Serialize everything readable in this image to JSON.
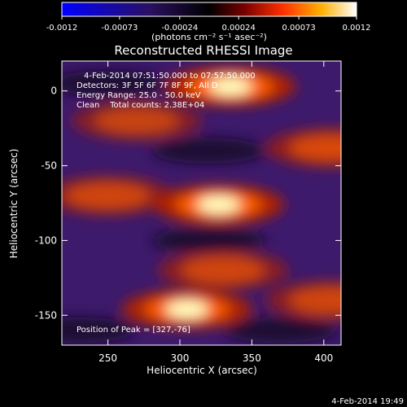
{
  "colorbar": {
    "ticks": [
      "-0.0012",
      "-0.00073",
      "-0.00024",
      "0.00024",
      "0.00073",
      "0.0012"
    ],
    "tick_values": [
      -0.0012,
      -0.00073,
      -0.00024,
      0.00024,
      0.00073,
      0.0012
    ],
    "min": -0.0012,
    "max": 0.0012,
    "unit_label": "(photons cm⁻² s⁻¹ asec⁻²)"
  },
  "title": "Reconstructed RHESSI Image",
  "info": {
    "time_range": "4-Feb-2014 07:51:50.000 to 07:57:50.000",
    "detectors": "Detectors: 3F 5F 6F 7F 8F 9F, All D",
    "energy": "Energy Range: 25.0 - 50.0 keV",
    "clean": "Clean    Total counts: 2.38E+04",
    "peak": "Position of Peak = [327,-76]"
  },
  "footer_date": "4-Feb-2014 19:49",
  "chart_data": {
    "type": "heatmap",
    "title": "Reconstructed RHESSI Image",
    "xlabel": "Heliocentric X (arcsec)",
    "ylabel": "Heliocentric Y (arcsec)",
    "xlim": [
      218,
      412
    ],
    "ylim": [
      -170,
      20
    ],
    "x_ticks": [
      250,
      300,
      350,
      400
    ],
    "y_ticks": [
      0,
      -50,
      -100,
      -150
    ],
    "x_tick_labels": [
      "250",
      "300",
      "350",
      "400"
    ],
    "y_tick_labels": [
      "0",
      "-50",
      "-100",
      "-150"
    ],
    "colormap": "blue-purple-red-yellow-white",
    "peak": [
      327,
      -76
    ],
    "bright_bands": [
      {
        "x": 335,
        "y": 3,
        "level": 1.0
      },
      {
        "x": 270,
        "y": -20,
        "level": 0.55
      },
      {
        "x": 405,
        "y": -38,
        "level": 0.65
      },
      {
        "x": 327,
        "y": -76,
        "level": 1.0
      },
      {
        "x": 250,
        "y": -70,
        "level": 0.6
      },
      {
        "x": 330,
        "y": -120,
        "level": 0.6
      },
      {
        "x": 405,
        "y": -140,
        "level": 0.6
      },
      {
        "x": 305,
        "y": -146,
        "level": 0.95
      }
    ],
    "dark_bands": [
      {
        "x": 320,
        "y": -40
      },
      {
        "x": 320,
        "y": -100
      },
      {
        "x": 250,
        "y": 5
      },
      {
        "x": 370,
        "y": -160
      },
      {
        "x": 230,
        "y": -160
      }
    ]
  }
}
